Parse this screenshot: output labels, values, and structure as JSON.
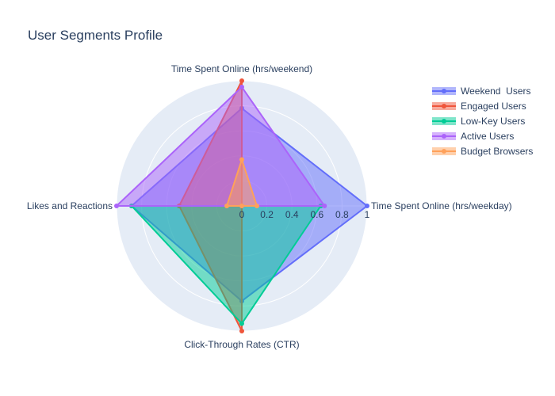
{
  "chart_data": {
    "type": "radar",
    "title": "User Segments Profile",
    "axes": [
      "Time Spent Online (hrs/weekday)",
      "Time Spent Online (hrs/weekend)",
      "Likes and Reactions",
      "Click-Through Rates (CTR)"
    ],
    "radial_ticks": [
      "0",
      "0.2",
      "0.4",
      "0.6",
      "0.8",
      "1"
    ],
    "radial_range": [
      0,
      1
    ],
    "legend_position": "top-right",
    "series": [
      {
        "name": "Weekend  Users",
        "color": "#636efa",
        "values": [
          1.0,
          0.78,
          0.88,
          0.76
        ]
      },
      {
        "name": "Engaged Users",
        "color": "#ef553b",
        "values": [
          0.0,
          1.0,
          0.5,
          1.0
        ]
      },
      {
        "name": "Low-Key Users",
        "color": "#00cc96",
        "values": [
          0.63,
          0.0,
          0.88,
          0.94
        ]
      },
      {
        "name": "Active Users",
        "color": "#ab63fa",
        "values": [
          0.66,
          0.95,
          1.0,
          0.0
        ]
      },
      {
        "name": "Budget Browsers",
        "color": "#ffa15a",
        "values": [
          0.12,
          0.37,
          0.12,
          0.0
        ]
      }
    ]
  }
}
